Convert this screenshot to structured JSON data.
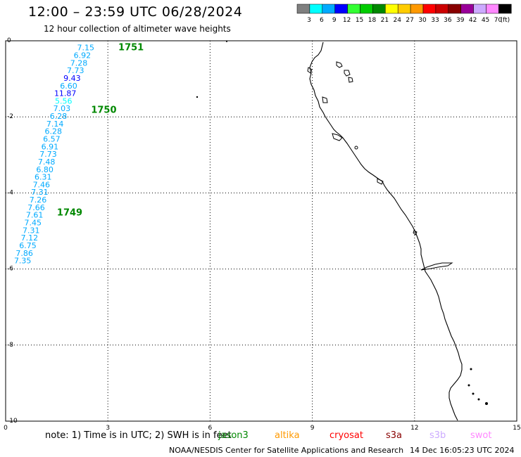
{
  "header": {
    "title": "12:00 – 23:59 UTC 06/28/2024",
    "subtitle": "12 hour collection of altimeter wave heights"
  },
  "legend": {
    "colors": [
      "#7f7f7f",
      "#00ffff",
      "#00aaff",
      "#0000ff",
      "#33ff33",
      "#00cc00",
      "#008800",
      "#ffff00",
      "#ffcc00",
      "#ff9900",
      "#ff0000",
      "#cc0000",
      "#880000",
      "#990099",
      "#ccaaff",
      "#ff88ff",
      "#000000"
    ],
    "labels": [
      "3",
      "6",
      "9",
      "12",
      "15",
      "18",
      "21",
      "24",
      "27",
      "30",
      "33",
      "36",
      "39",
      "42",
      "45",
      "70",
      "(ft)"
    ]
  },
  "axes": {
    "x_ticks": [
      "0",
      "3",
      "6",
      "9",
      "12",
      "15"
    ],
    "y_ticks": [
      "0",
      "-2",
      "-4",
      "-6",
      "-8",
      "-10"
    ]
  },
  "passes": [
    {
      "id": "1751",
      "x": 3.1,
      "y": -0.16
    },
    {
      "id": "1750",
      "x": 2.3,
      "y": -1.8
    },
    {
      "id": "1749",
      "x": 1.3,
      "y": -4.5
    }
  ],
  "points": [
    {
      "v": "7.15",
      "x": 2.35,
      "y": -0.16,
      "color": "#00aaff"
    },
    {
      "v": "6.92",
      "x": 2.25,
      "y": -0.36,
      "color": "#00aaff"
    },
    {
      "v": "7.28",
      "x": 2.15,
      "y": -0.56,
      "color": "#00aaff"
    },
    {
      "v": "7.73",
      "x": 2.05,
      "y": -0.76,
      "color": "#00aaff"
    },
    {
      "v": "9.43",
      "x": 1.95,
      "y": -0.96,
      "color": "#0000ff"
    },
    {
      "v": "6.60",
      "x": 1.85,
      "y": -1.16,
      "color": "#00aaff"
    },
    {
      "v": "11.87",
      "x": 1.75,
      "y": -1.36,
      "color": "#0000ff"
    },
    {
      "v": "5.56",
      "x": 1.7,
      "y": -1.56,
      "color": "#00ffff"
    },
    {
      "v": "7.03",
      "x": 1.65,
      "y": -1.76,
      "color": "#00aaff"
    },
    {
      "v": "6.28",
      "x": 1.55,
      "y": -1.96,
      "color": "#00aaff"
    },
    {
      "v": "7.14",
      "x": 1.45,
      "y": -2.16,
      "color": "#00aaff"
    },
    {
      "v": "6.28",
      "x": 1.4,
      "y": -2.36,
      "color": "#00aaff"
    },
    {
      "v": "6.57",
      "x": 1.35,
      "y": -2.56,
      "color": "#00aaff"
    },
    {
      "v": "6.91",
      "x": 1.3,
      "y": -2.76,
      "color": "#00aaff"
    },
    {
      "v": "7.73",
      "x": 1.25,
      "y": -2.96,
      "color": "#00aaff"
    },
    {
      "v": "7.48",
      "x": 1.2,
      "y": -3.16,
      "color": "#00aaff"
    },
    {
      "v": "6.80",
      "x": 1.15,
      "y": -3.36,
      "color": "#00aaff"
    },
    {
      "v": "6.31",
      "x": 1.1,
      "y": -3.56,
      "color": "#00aaff"
    },
    {
      "v": "7.46",
      "x": 1.05,
      "y": -3.76,
      "color": "#00aaff"
    },
    {
      "v": "7.31",
      "x": 1.0,
      "y": -3.96,
      "color": "#00aaff"
    },
    {
      "v": "7.26",
      "x": 0.95,
      "y": -4.16,
      "color": "#00aaff"
    },
    {
      "v": "7.66",
      "x": 0.9,
      "y": -4.36,
      "color": "#00aaff"
    },
    {
      "v": "7.61",
      "x": 0.85,
      "y": -4.56,
      "color": "#00aaff"
    },
    {
      "v": "7.45",
      "x": 0.8,
      "y": -4.76,
      "color": "#00aaff"
    },
    {
      "v": "7.31",
      "x": 0.75,
      "y": -4.96,
      "color": "#00aaff"
    },
    {
      "v": "7.12",
      "x": 0.7,
      "y": -5.16,
      "color": "#00aaff"
    },
    {
      "v": "6.75",
      "x": 0.65,
      "y": -5.36,
      "color": "#00aaff"
    },
    {
      "v": "7.86",
      "x": 0.55,
      "y": -5.56,
      "color": "#00aaff"
    },
    {
      "v": "7.35",
      "x": 0.5,
      "y": -5.76,
      "color": "#00aaff"
    }
  ],
  "footer": {
    "note": "note: 1) Time is in UTC; 2) SWH is in feet",
    "satellites": [
      {
        "name": "jason3",
        "color": "#008800"
      },
      {
        "name": "altika",
        "color": "#ff9900"
      },
      {
        "name": "cryosat",
        "color": "#ff0000"
      },
      {
        "name": "s3a",
        "color": "#880000"
      },
      {
        "name": "s3b",
        "color": "#ccaaff"
      },
      {
        "name": "swot",
        "color": "#ff88ff"
      }
    ],
    "credit": "NOAA/NESDIS Center for Satellite Applications and Research",
    "timestamp": "14 Dec 16:05:23 UTC 2024"
  }
}
